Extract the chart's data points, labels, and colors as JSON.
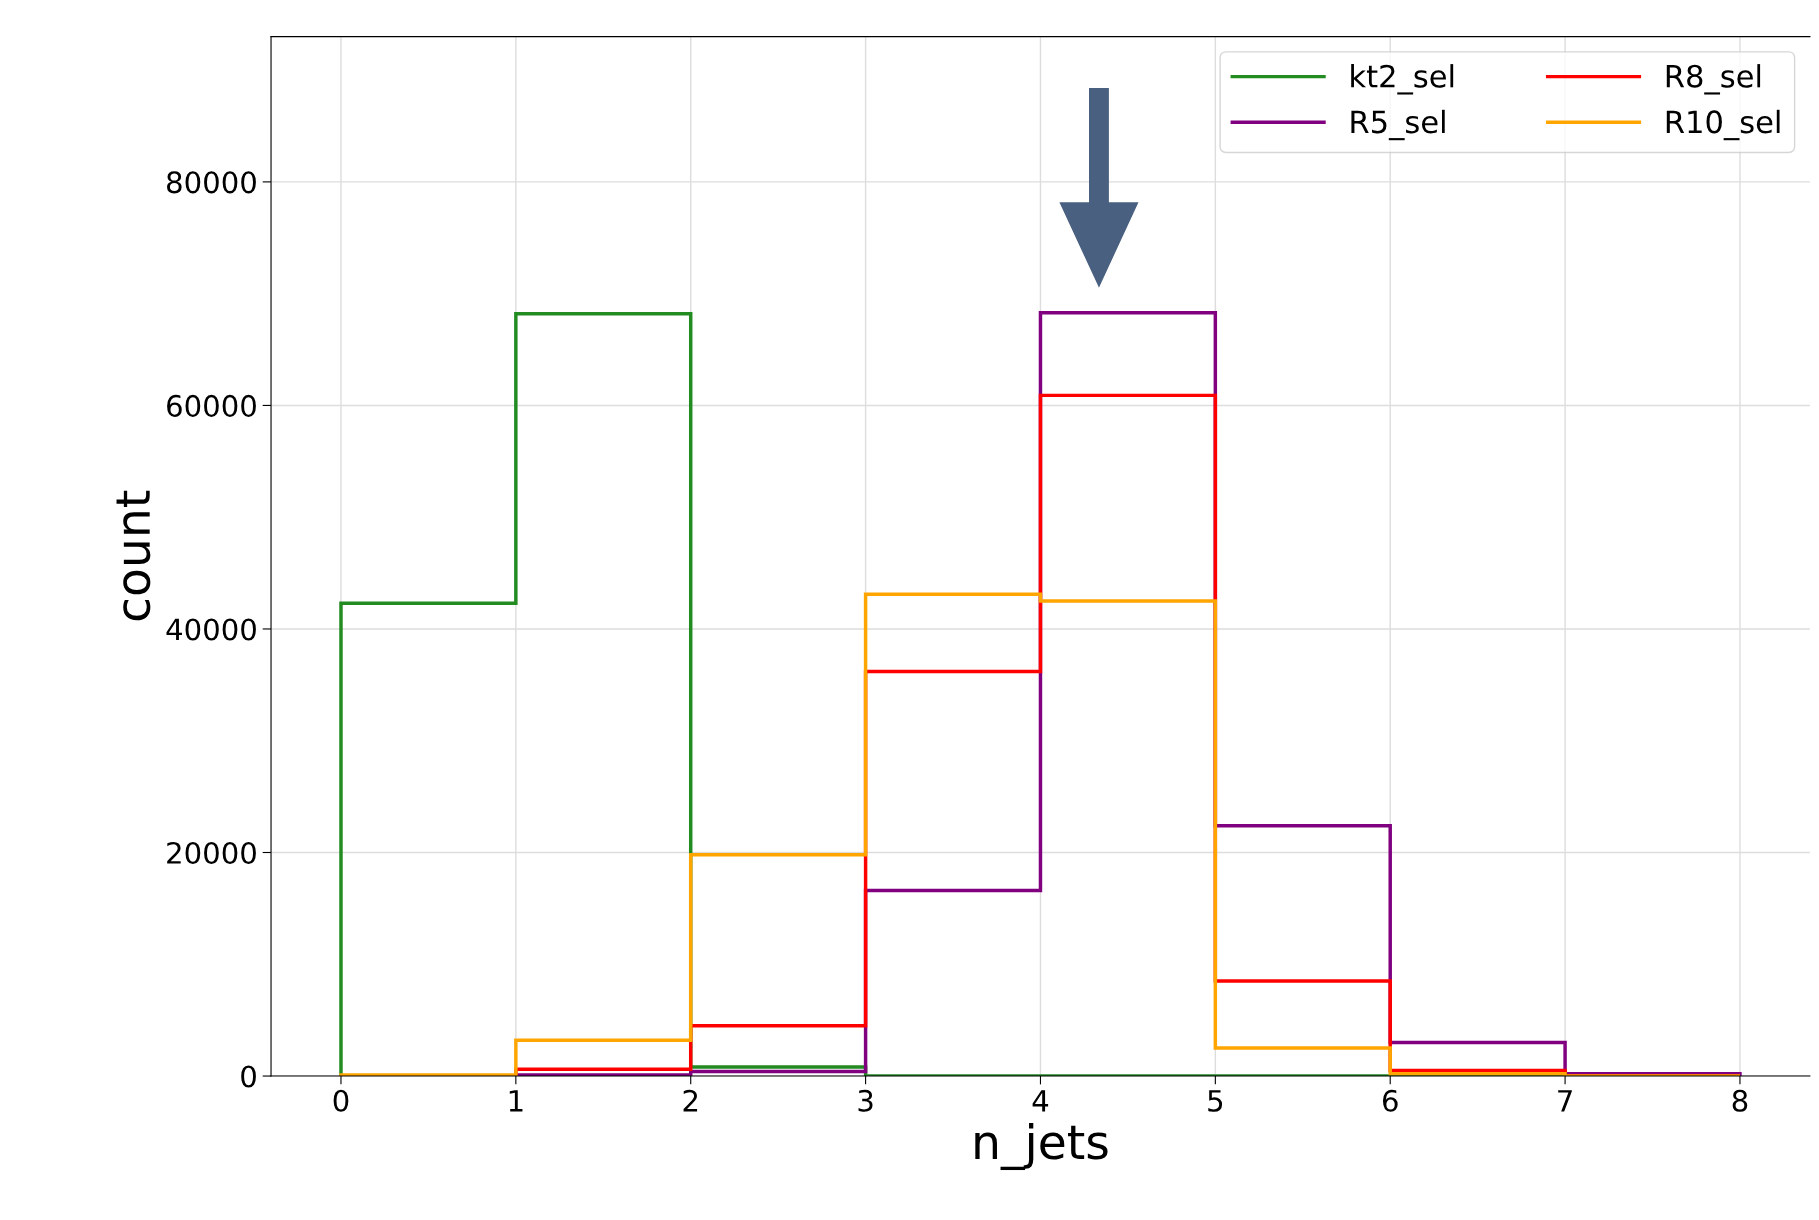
{
  "chart_data": {
    "type": "histogram",
    "xlabel": "n_jets",
    "ylabel": "count",
    "bins": [
      0,
      1,
      2,
      3,
      4,
      5,
      6,
      7,
      8
    ],
    "series": [
      {
        "name": "kt2_sel",
        "color": "#228b22",
        "values": [
          42300,
          68200,
          800,
          0,
          0,
          0,
          0,
          0
        ]
      },
      {
        "name": "R5_sel",
        "color": "#800080",
        "values": [
          0,
          100,
          400,
          16600,
          68300,
          22400,
          3000,
          200
        ]
      },
      {
        "name": "R8_sel",
        "color": "#ff0000",
        "values": [
          0,
          600,
          4500,
          36200,
          60900,
          8500,
          500,
          0
        ]
      },
      {
        "name": "R10_sel",
        "color": "#ffa500",
        "values": [
          100,
          3200,
          19800,
          43100,
          42500,
          2500,
          200,
          0
        ]
      }
    ],
    "xlim": [
      -0.4,
      8.4
    ],
    "ylim": [
      0,
      93000
    ],
    "xticks": [
      0,
      1,
      2,
      3,
      4,
      5,
      6,
      7,
      8
    ],
    "yticks": [
      0,
      20000,
      40000,
      60000,
      80000
    ],
    "grid": true,
    "legend": "top right"
  }
}
